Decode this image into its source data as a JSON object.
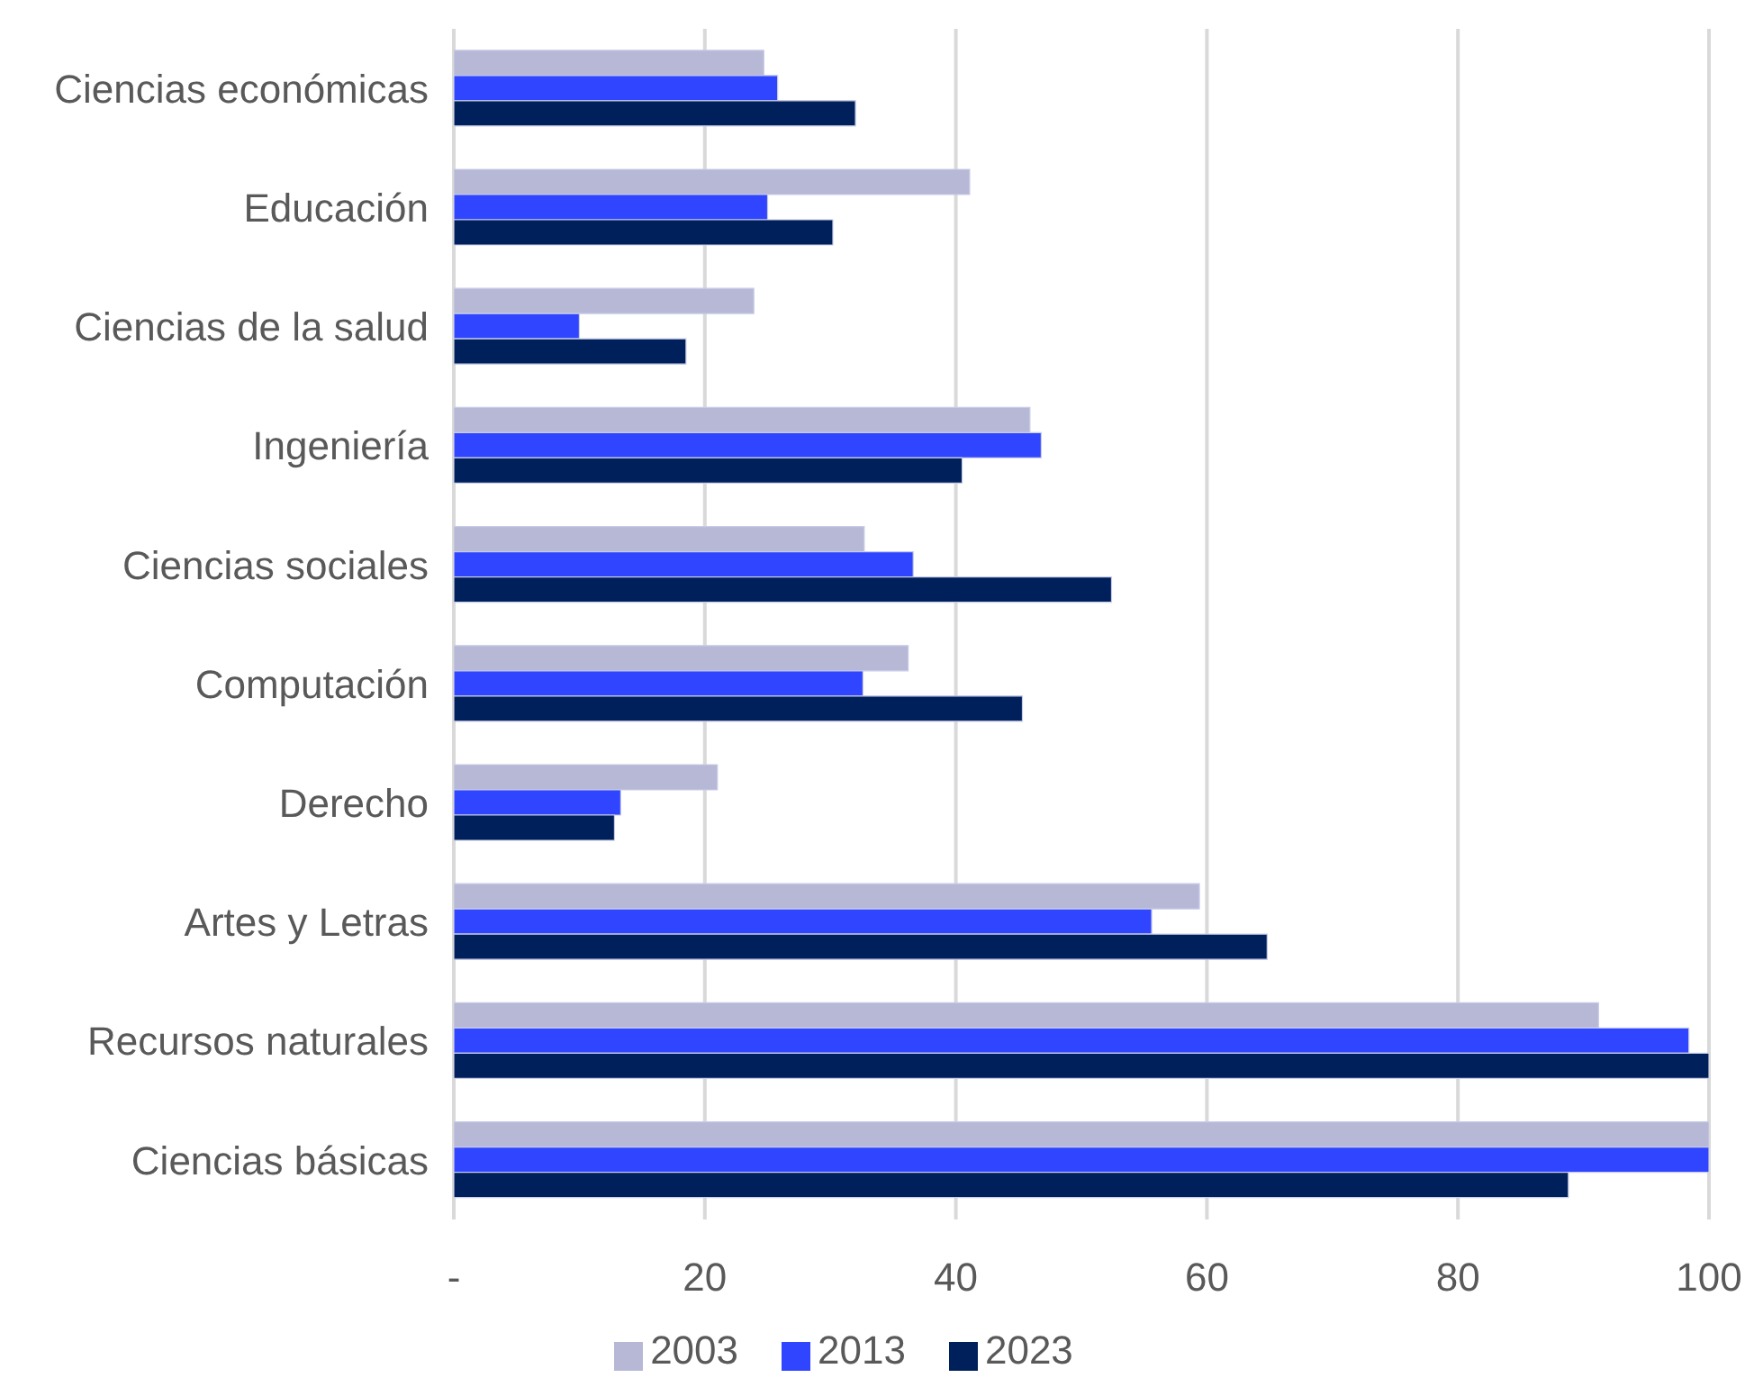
{
  "chart_data": {
    "type": "bar",
    "orientation": "horizontal",
    "categories": [
      "Ciencias económicas",
      "Educación",
      "Ciencias de la salud",
      "Ingeniería",
      "Ciencias sociales",
      "Computación",
      "Derecho",
      "Artes y Letras",
      "Recursos naturales",
      "Ciencias básicas"
    ],
    "series": [
      {
        "name": "2003",
        "color": "#b6b8d6",
        "values": [
          24.7,
          41.1,
          23.9,
          45.9,
          32.7,
          36.2,
          21.0,
          59.4,
          91.2,
          100
        ]
      },
      {
        "name": "2013",
        "color": "#3045ff",
        "values": [
          25.8,
          25.0,
          10.0,
          46.8,
          36.6,
          32.6,
          13.3,
          55.6,
          98.4,
          100
        ]
      },
      {
        "name": "2023",
        "color": "#00205c",
        "values": [
          32.0,
          30.2,
          18.5,
          40.5,
          52.4,
          45.3,
          12.8,
          64.8,
          100,
          88.8
        ]
      }
    ],
    "xlim": [
      0,
      100
    ],
    "xticks": [
      {
        "value": 0,
        "label": "-"
      },
      20,
      40,
      60,
      80,
      100
    ],
    "grid": "x",
    "legend": "bottom"
  }
}
